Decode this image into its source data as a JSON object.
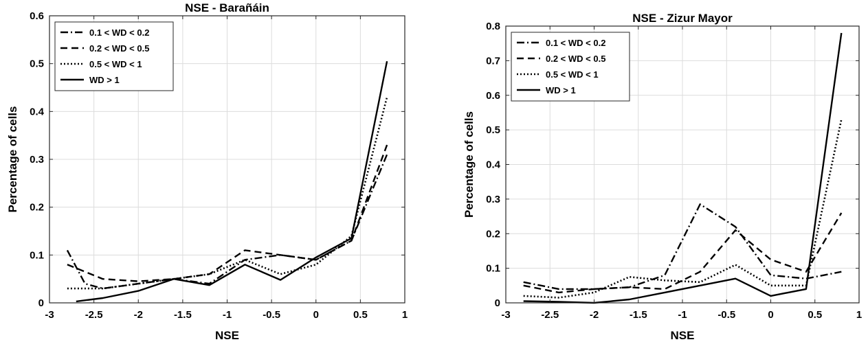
{
  "chart_data": [
    {
      "type": "line",
      "title": "NSE - Barañáin",
      "xlabel": "NSE",
      "ylabel": "Percentage of cells",
      "xlim": [
        -3,
        1
      ],
      "ylim": [
        0,
        0.6
      ],
      "xticks": [
        -3,
        -2.5,
        -2,
        -1.5,
        -1,
        -0.5,
        0,
        0.5,
        1
      ],
      "xtick_labels": [
        "-3",
        "-2.5",
        "-2",
        "-1.5",
        "-1",
        "-0.5",
        "0",
        "0.5",
        "1"
      ],
      "yticks": [
        0,
        0.1,
        0.2,
        0.3,
        0.4,
        0.5,
        0.6
      ],
      "ytick_labels": [
        "0",
        "0.1",
        "0.2",
        "0.3",
        "0.4",
        "0.5",
        "0.6"
      ],
      "grid": true,
      "legend_position": "top-left",
      "series": [
        {
          "name": "0.1 < WD < 0.2",
          "style": "dashdot",
          "x": [
            -2.8,
            -2.6,
            -2.4,
            -2.0,
            -1.6,
            -1.2,
            -0.8,
            -0.4,
            0.0,
            0.4,
            0.8
          ],
          "y": [
            0.11,
            0.04,
            0.03,
            0.04,
            0.05,
            0.04,
            0.09,
            0.1,
            0.09,
            0.13,
            0.31
          ]
        },
        {
          "name": "0.2 < WD < 0.5",
          "style": "dashed",
          "x": [
            -2.8,
            -2.4,
            -2.0,
            -1.6,
            -1.2,
            -0.8,
            -0.4,
            0.0,
            0.4,
            0.8
          ],
          "y": [
            0.08,
            0.05,
            0.045,
            0.05,
            0.06,
            0.11,
            0.1,
            0.09,
            0.13,
            0.33
          ]
        },
        {
          "name": "0.5 < WD < 1",
          "style": "dotted",
          "x": [
            -2.8,
            -2.4,
            -2.0,
            -1.6,
            -1.2,
            -0.8,
            -0.4,
            0.0,
            0.4,
            0.8
          ],
          "y": [
            0.03,
            0.03,
            0.04,
            0.05,
            0.06,
            0.09,
            0.06,
            0.08,
            0.14,
            0.43
          ]
        },
        {
          "name": "WD > 1",
          "style": "solid",
          "x": [
            -2.7,
            -2.4,
            -2.0,
            -1.6,
            -1.2,
            -0.8,
            -0.4,
            0.0,
            0.4,
            0.8
          ],
          "y": [
            0.003,
            0.01,
            0.025,
            0.05,
            0.037,
            0.08,
            0.048,
            0.095,
            0.135,
            0.505
          ]
        }
      ]
    },
    {
      "type": "line",
      "title": "NSE - Zizur Mayor",
      "xlabel": "NSE",
      "ylabel": "Percentage of cells",
      "xlim": [
        -3,
        1
      ],
      "ylim": [
        0,
        0.8
      ],
      "xticks": [
        -3,
        -2.5,
        -2,
        -1.5,
        -1,
        -0.5,
        0,
        0.5,
        1
      ],
      "xtick_labels": [
        "-3",
        "-2.5",
        "-2",
        "-1.5",
        "-1",
        "-0.5",
        "0",
        "0.5",
        "1"
      ],
      "yticks": [
        0,
        0.1,
        0.2,
        0.3,
        0.4,
        0.5,
        0.6,
        0.7,
        0.8
      ],
      "ytick_labels": [
        "0",
        "0.1",
        "0.2",
        "0.3",
        "0.4",
        "0.5",
        "0.6",
        "0.7",
        "0.8"
      ],
      "grid": true,
      "legend_position": "top-left",
      "series": [
        {
          "name": "0.1 < WD < 0.2",
          "style": "dashdot",
          "x": [
            -2.8,
            -2.4,
            -2.0,
            -1.6,
            -1.2,
            -0.8,
            -0.4,
            0.0,
            0.4,
            0.8
          ],
          "y": [
            0.06,
            0.04,
            0.04,
            0.045,
            0.08,
            0.285,
            0.22,
            0.08,
            0.07,
            0.09
          ]
        },
        {
          "name": "0.2 < WD < 0.5",
          "style": "dashed",
          "x": [
            -2.8,
            -2.4,
            -2.0,
            -1.6,
            -1.2,
            -0.8,
            -0.4,
            0.0,
            0.4,
            0.8
          ],
          "y": [
            0.05,
            0.03,
            0.04,
            0.045,
            0.04,
            0.09,
            0.21,
            0.125,
            0.09,
            0.26
          ]
        },
        {
          "name": "0.5 < WD < 1",
          "style": "dotted",
          "x": [
            -2.8,
            -2.4,
            -2.0,
            -1.6,
            -1.2,
            -0.8,
            -0.4,
            0.0,
            0.4,
            0.8
          ],
          "y": [
            0.02,
            0.015,
            0.03,
            0.075,
            0.065,
            0.06,
            0.11,
            0.05,
            0.05,
            0.53
          ]
        },
        {
          "name": "WD > 1",
          "style": "solid",
          "x": [
            -2.8,
            -2.4,
            -2.0,
            -1.6,
            -1.2,
            -0.8,
            -0.4,
            0.0,
            0.4,
            0.8
          ],
          "y": [
            0.005,
            0.003,
            0.0,
            0.01,
            0.03,
            0.05,
            0.07,
            0.02,
            0.04,
            0.78
          ]
        }
      ]
    }
  ]
}
